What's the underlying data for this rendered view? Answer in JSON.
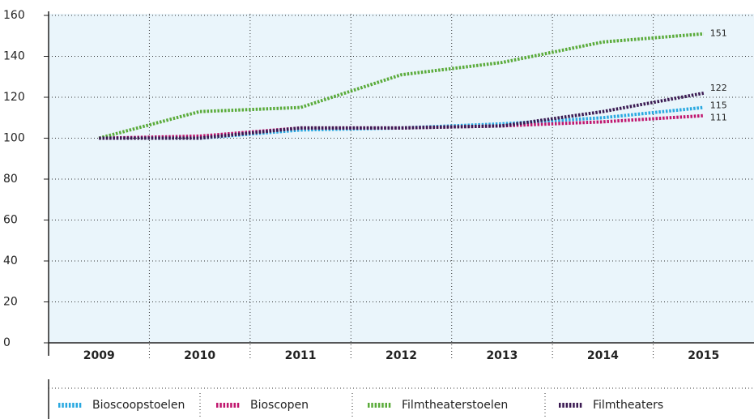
{
  "chart_data": {
    "type": "line",
    "categories": [
      "2009",
      "2010",
      "2011",
      "2012",
      "2013",
      "2014",
      "2015"
    ],
    "series": [
      {
        "name": "Bioscoopstoelen",
        "color": "#29a8e0",
        "values": [
          100,
          100,
          104,
          105,
          107,
          110,
          115
        ]
      },
      {
        "name": "Bioscopen",
        "color": "#c0166e",
        "values": [
          100,
          101,
          105,
          105,
          106,
          108,
          111
        ]
      },
      {
        "name": "Filmtheaterstoelen",
        "color": "#5aab3a",
        "values": [
          100,
          113,
          115,
          131,
          137,
          147,
          151
        ]
      },
      {
        "name": "Filmtheaters",
        "color": "#3b1a52",
        "values": [
          100,
          100,
          105,
          105,
          106,
          113,
          122
        ]
      }
    ],
    "ylim": [
      0,
      160
    ],
    "yticks": [
      0,
      20,
      40,
      60,
      80,
      100,
      120,
      140,
      160
    ],
    "grid": true,
    "legend": "bottom"
  }
}
